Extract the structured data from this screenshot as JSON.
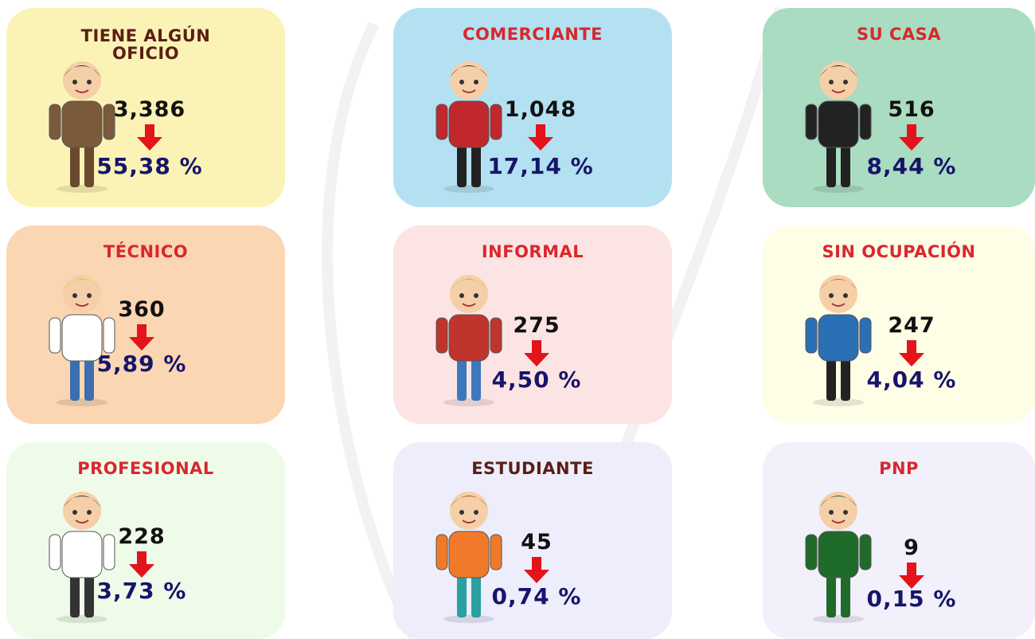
{
  "cards": [
    {
      "title": "TIENE ALGÚN OFICIO",
      "count": "3,386",
      "percent": "55,38 %"
    },
    {
      "title": "COMERCIANTE",
      "count": "1,048",
      "percent": "17,14 %"
    },
    {
      "title": "SU CASA",
      "count": "516",
      "percent": "8,44 %"
    },
    {
      "title": "TÉCNICO",
      "count": "360",
      "percent": "5,89 %"
    },
    {
      "title": "INFORMAL",
      "count": "275",
      "percent": "4,50 %"
    },
    {
      "title": "SIN OCUPACIÓN",
      "count": "247",
      "percent": "4,04 %"
    },
    {
      "title": "PROFESIONAL",
      "count": "228",
      "percent": "3,73 %"
    },
    {
      "title": "ESTUDIANTE",
      "count": "45",
      "percent": "0,74 %"
    },
    {
      "title": "PNP",
      "count": "9",
      "percent": "0,15 %"
    }
  ]
}
